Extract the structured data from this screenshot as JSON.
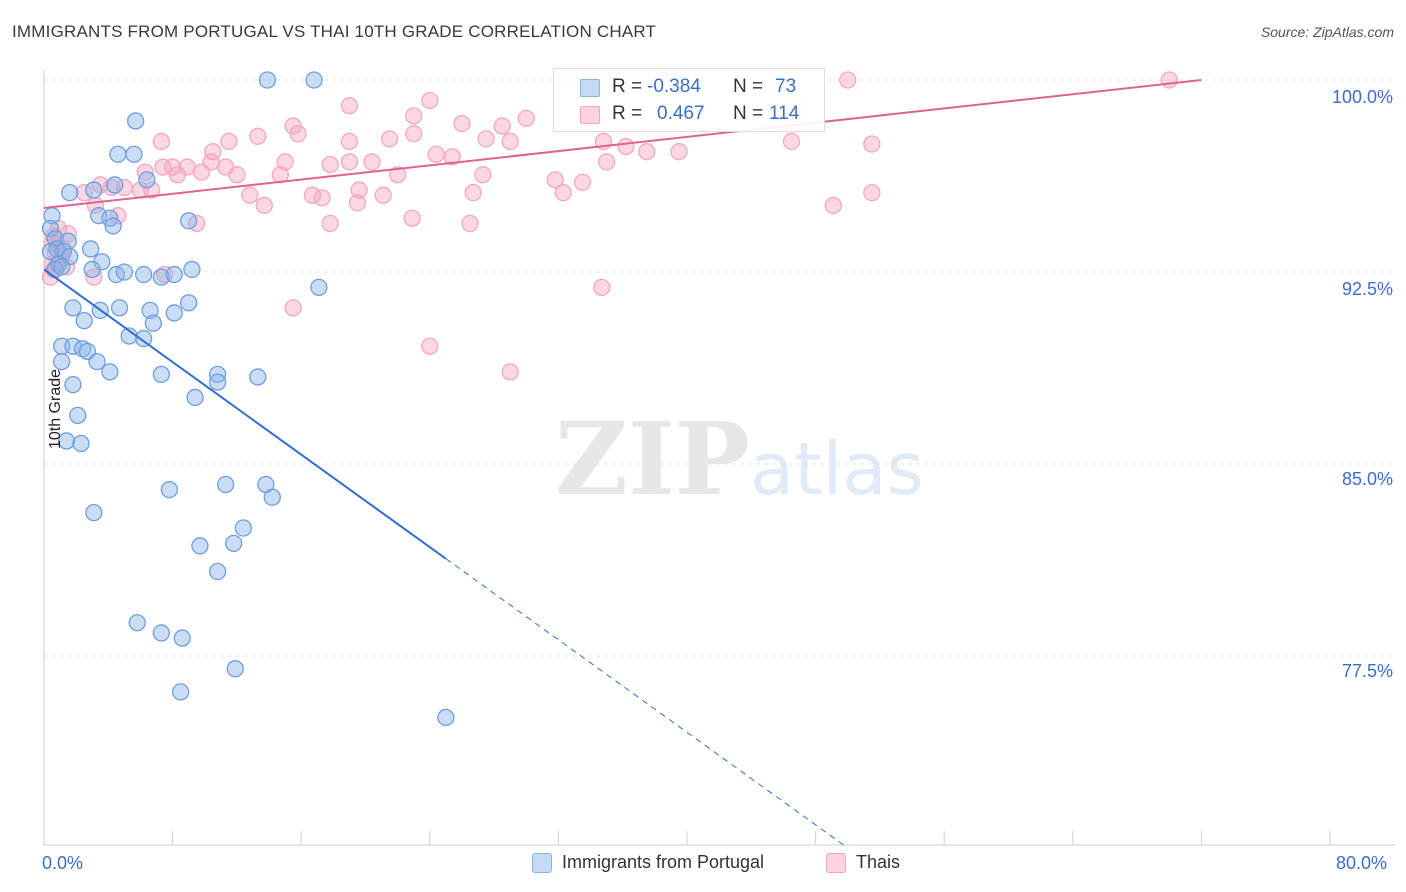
{
  "title": "IMMIGRANTS FROM PORTUGAL VS THAI 10TH GRADE CORRELATION CHART",
  "source": "Source: ZipAtlas.com",
  "watermark": {
    "part1": "ZIP",
    "part2": "atlas"
  },
  "stats": {
    "row1": {
      "r_label": "R =",
      "r_value": "-0.384",
      "n_label": "N =",
      "n_value": "73"
    },
    "row2": {
      "r_label": "R =",
      "r_value": "0.467",
      "n_label": "N =",
      "n_value": "114"
    }
  },
  "legend": {
    "series1": "Immigrants from Portugal",
    "series2": "Thais"
  },
  "chart_data": {
    "type": "scatter",
    "xlabel": "",
    "ylabel": "10th Grade",
    "x_tick_labels": [
      "0.0%",
      "80.0%"
    ],
    "y_tick_labels": [
      "100.0%",
      "92.5%",
      "85.0%",
      "77.5%"
    ],
    "y_ticks": [
      100.0,
      92.5,
      85.0,
      77.5
    ],
    "xlim": [
      0,
      80
    ],
    "ylim": [
      70.0,
      100.3
    ],
    "grid": true,
    "legend_position": "bottom",
    "colors": {
      "series1": "#8ab4e8",
      "series1_line": "#2f6fcf",
      "series2": "#f4a7c0",
      "series2_line": "#e0638f"
    },
    "series": [
      {
        "name": "Immigrants from Portugal",
        "trend": {
          "x": [
            0.0,
            25.0
          ],
          "y": [
            92.6,
            81.3
          ],
          "dashed_to": [
            50.0,
            70.0
          ]
        },
        "points": [
          [
            13.9,
            100.0
          ],
          [
            16.8,
            100.0
          ],
          [
            5.7,
            98.4
          ],
          [
            5.6,
            97.1
          ],
          [
            4.6,
            97.1
          ],
          [
            6.4,
            96.1
          ],
          [
            1.6,
            95.6
          ],
          [
            3.1,
            95.7
          ],
          [
            4.4,
            95.9
          ],
          [
            0.5,
            94.7
          ],
          [
            3.4,
            94.7
          ],
          [
            4.1,
            94.6
          ],
          [
            9.0,
            94.5
          ],
          [
            4.3,
            94.3
          ],
          [
            0.4,
            94.2
          ],
          [
            0.7,
            93.8
          ],
          [
            1.5,
            93.7
          ],
          [
            0.8,
            93.4
          ],
          [
            1.2,
            93.3
          ],
          [
            2.9,
            93.4
          ],
          [
            1.6,
            93.1
          ],
          [
            0.4,
            93.3
          ],
          [
            3.6,
            92.9
          ],
          [
            0.9,
            92.8
          ],
          [
            0.7,
            92.6
          ],
          [
            1.1,
            92.7
          ],
          [
            3.0,
            92.6
          ],
          [
            4.5,
            92.4
          ],
          [
            5.0,
            92.5
          ],
          [
            6.2,
            92.4
          ],
          [
            7.3,
            92.3
          ],
          [
            8.1,
            92.4
          ],
          [
            9.2,
            92.6
          ],
          [
            17.1,
            91.9
          ],
          [
            1.8,
            91.1
          ],
          [
            3.5,
            91.0
          ],
          [
            4.7,
            91.1
          ],
          [
            6.6,
            91.0
          ],
          [
            8.1,
            90.9
          ],
          [
            9.0,
            91.3
          ],
          [
            2.5,
            90.6
          ],
          [
            6.8,
            90.5
          ],
          [
            5.3,
            90.0
          ],
          [
            6.2,
            89.9
          ],
          [
            1.1,
            89.6
          ],
          [
            1.8,
            89.6
          ],
          [
            2.4,
            89.5
          ],
          [
            2.7,
            89.4
          ],
          [
            1.1,
            89.0
          ],
          [
            3.3,
            89.0
          ],
          [
            10.8,
            88.5
          ],
          [
            4.1,
            88.6
          ],
          [
            7.3,
            88.5
          ],
          [
            13.3,
            88.4
          ],
          [
            10.8,
            88.2
          ],
          [
            1.8,
            88.1
          ],
          [
            9.4,
            87.6
          ],
          [
            2.1,
            86.9
          ],
          [
            1.4,
            85.9
          ],
          [
            2.3,
            85.8
          ],
          [
            7.8,
            84.0
          ],
          [
            11.3,
            84.2
          ],
          [
            13.8,
            84.2
          ],
          [
            14.2,
            83.7
          ],
          [
            3.1,
            83.1
          ],
          [
            12.4,
            82.5
          ],
          [
            9.7,
            81.8
          ],
          [
            11.8,
            81.9
          ],
          [
            10.8,
            80.8
          ],
          [
            5.8,
            78.8
          ],
          [
            7.3,
            78.4
          ],
          [
            8.6,
            78.2
          ],
          [
            11.9,
            77.0
          ],
          [
            8.5,
            76.1
          ],
          [
            25.0,
            75.1
          ]
        ]
      },
      {
        "name": "Thais",
        "trend": {
          "x": [
            0.0,
            72.0
          ],
          "y": [
            95.0,
            100.0
          ]
        },
        "points": [
          [
            32.5,
            100.0
          ],
          [
            36.5,
            100.0
          ],
          [
            39.0,
            100.0
          ],
          [
            50.0,
            100.0
          ],
          [
            70.0,
            100.0
          ],
          [
            19.0,
            99.0
          ],
          [
            24.0,
            99.2
          ],
          [
            47.0,
            99.0
          ],
          [
            30.0,
            98.5
          ],
          [
            23.0,
            98.6
          ],
          [
            26.0,
            98.3
          ],
          [
            15.5,
            98.2
          ],
          [
            28.5,
            98.2
          ],
          [
            15.8,
            97.9
          ],
          [
            13.3,
            97.8
          ],
          [
            23.0,
            97.9
          ],
          [
            21.5,
            97.7
          ],
          [
            11.5,
            97.6
          ],
          [
            19.0,
            97.6
          ],
          [
            27.5,
            97.7
          ],
          [
            29.0,
            97.6
          ],
          [
            34.8,
            97.6
          ],
          [
            36.2,
            97.4
          ],
          [
            46.5,
            97.6
          ],
          [
            51.5,
            97.5
          ],
          [
            7.3,
            97.6
          ],
          [
            10.5,
            97.2
          ],
          [
            24.4,
            97.1
          ],
          [
            25.4,
            97.0
          ],
          [
            37.5,
            97.2
          ],
          [
            39.5,
            97.2
          ],
          [
            8.0,
            96.6
          ],
          [
            8.9,
            96.6
          ],
          [
            10.4,
            96.8
          ],
          [
            11.3,
            96.6
          ],
          [
            15.0,
            96.8
          ],
          [
            17.8,
            96.7
          ],
          [
            19.0,
            96.8
          ],
          [
            20.4,
            96.8
          ],
          [
            35.0,
            96.8
          ],
          [
            6.3,
            96.4
          ],
          [
            7.4,
            96.6
          ],
          [
            8.3,
            96.3
          ],
          [
            9.8,
            96.4
          ],
          [
            12.0,
            96.3
          ],
          [
            14.7,
            96.3
          ],
          [
            22.0,
            96.3
          ],
          [
            27.3,
            96.3
          ],
          [
            31.8,
            96.1
          ],
          [
            33.5,
            96.0
          ],
          [
            3.5,
            95.9
          ],
          [
            4.2,
            95.8
          ],
          [
            5.0,
            95.8
          ],
          [
            6.0,
            95.7
          ],
          [
            6.7,
            95.7
          ],
          [
            2.5,
            95.6
          ],
          [
            19.6,
            95.7
          ],
          [
            26.7,
            95.6
          ],
          [
            12.8,
            95.5
          ],
          [
            16.7,
            95.5
          ],
          [
            17.3,
            95.4
          ],
          [
            21.1,
            95.5
          ],
          [
            32.3,
            95.6
          ],
          [
            51.5,
            95.6
          ],
          [
            13.7,
            95.1
          ],
          [
            19.5,
            95.2
          ],
          [
            3.2,
            95.1
          ],
          [
            49.1,
            95.1
          ],
          [
            4.6,
            94.7
          ],
          [
            22.9,
            94.6
          ],
          [
            26.5,
            94.4
          ],
          [
            17.8,
            94.4
          ],
          [
            9.5,
            94.4
          ],
          [
            0.9,
            94.2
          ],
          [
            1.5,
            94.0
          ],
          [
            0.6,
            93.9
          ],
          [
            0.8,
            93.6
          ],
          [
            0.5,
            93.6
          ],
          [
            1.2,
            93.4
          ],
          [
            0.7,
            93.2
          ],
          [
            1.1,
            93.1
          ],
          [
            0.9,
            92.9
          ],
          [
            0.5,
            92.8
          ],
          [
            0.6,
            92.6
          ],
          [
            1.4,
            92.7
          ],
          [
            0.4,
            92.3
          ],
          [
            3.1,
            92.3
          ],
          [
            7.5,
            92.4
          ],
          [
            34.7,
            91.9
          ],
          [
            15.5,
            91.1
          ],
          [
            24.0,
            89.6
          ],
          [
            29.0,
            88.6
          ]
        ]
      }
    ]
  }
}
